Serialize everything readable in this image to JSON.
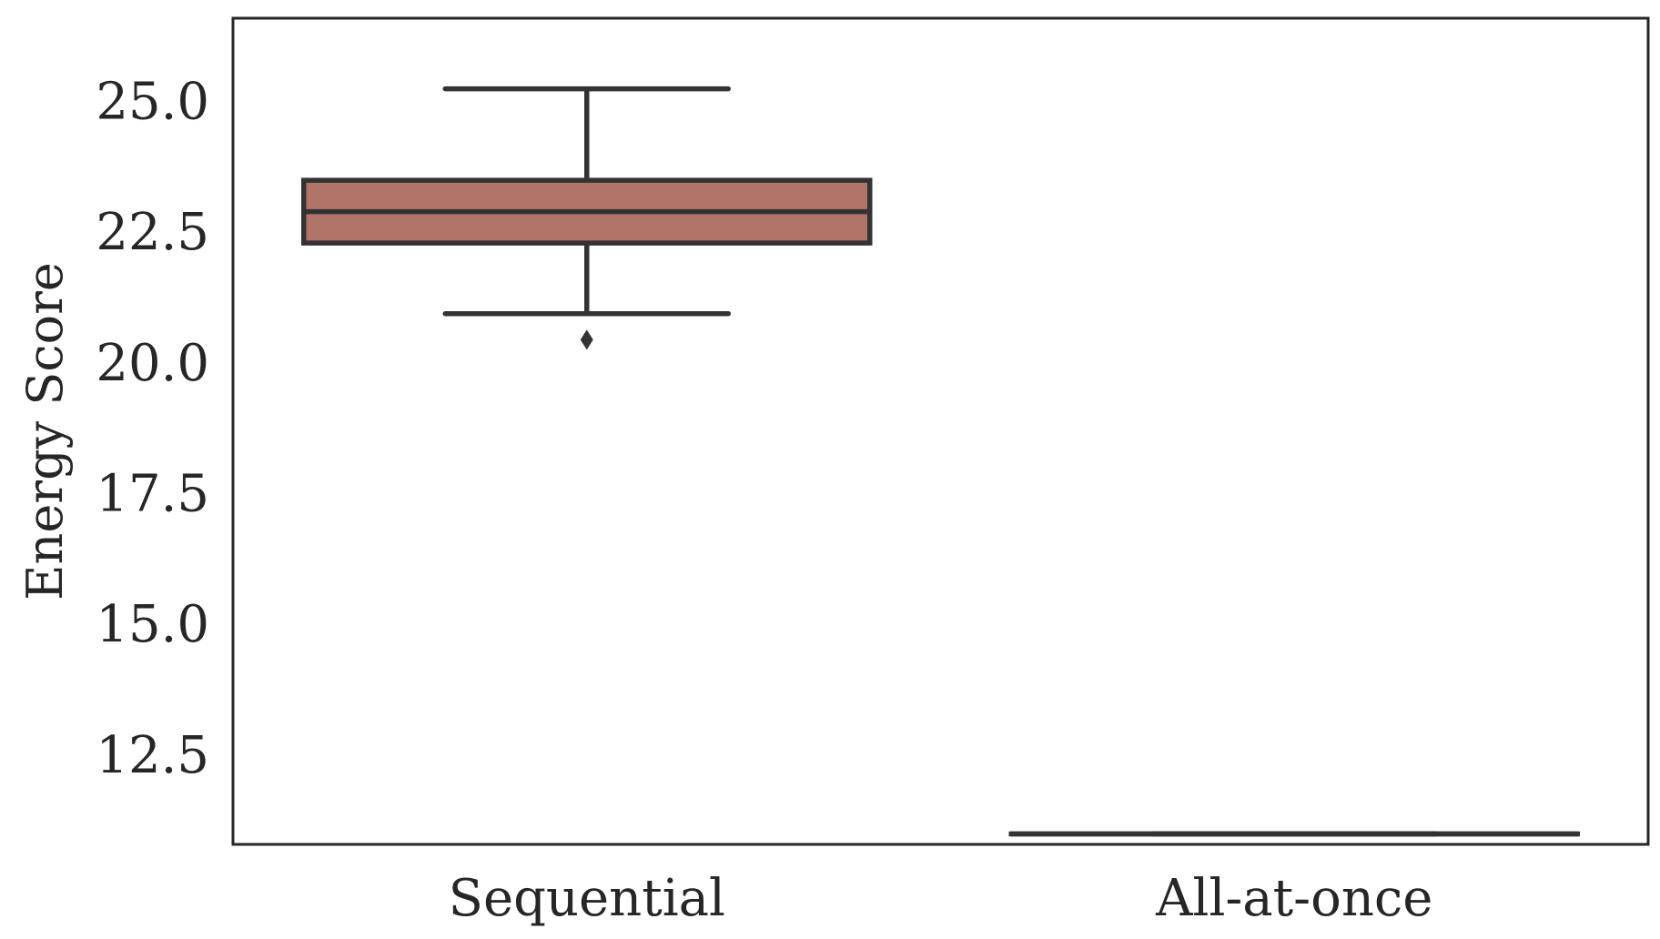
{
  "chart_data": {
    "type": "box",
    "title": "",
    "xlabel": "",
    "ylabel": "Energy Score",
    "categories": [
      "Sequential",
      "All-at-once"
    ],
    "ylim": [
      10.8,
      26.6
    ],
    "yticks": [
      "12.5",
      "15.0",
      "17.5",
      "20.0",
      "22.5",
      "25.0"
    ],
    "grid": false,
    "legend": "none",
    "boxes": [
      {
        "category": "Sequential",
        "whisker_low": 20.95,
        "q1": 22.3,
        "median": 22.9,
        "q3": 23.5,
        "whisker_high": 25.25,
        "outliers": [
          20.45
        ],
        "color": "#b07468"
      },
      {
        "category": "All-at-once",
        "whisker_low": 11.0,
        "q1": 11.0,
        "median": 11.0,
        "q3": 11.0,
        "whisker_high": 11.0,
        "outliers": [],
        "color": "#b07468"
      }
    ],
    "edge_color": "#333333",
    "text_color": "#262626"
  }
}
